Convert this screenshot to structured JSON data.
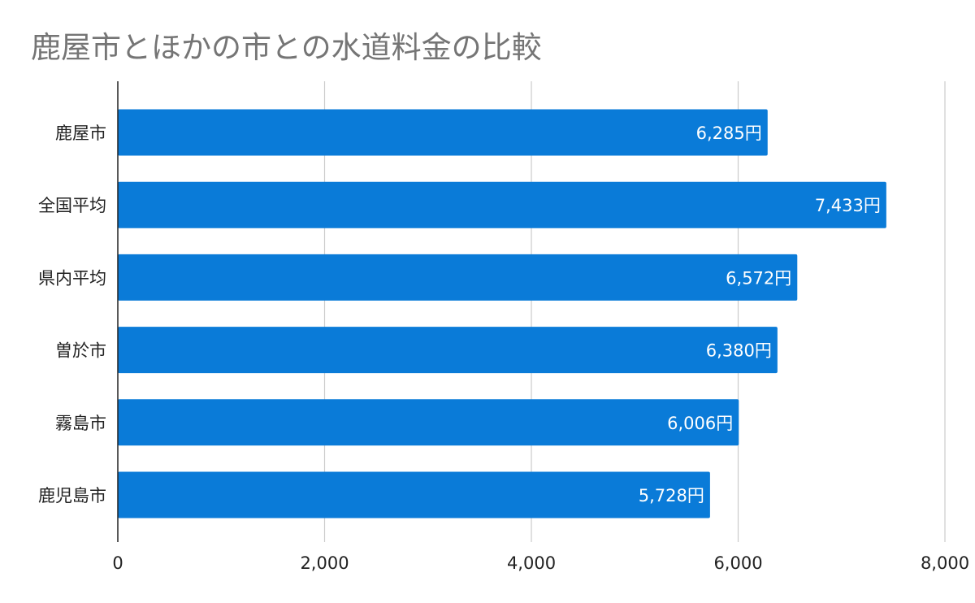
{
  "chart_data": {
    "type": "bar",
    "orientation": "horizontal",
    "title": "鹿屋市とほかの市との水道料金の比較",
    "categories": [
      "鹿屋市",
      "全国平均",
      "県内平均",
      "曽於市",
      "霧島市",
      "鹿児島市"
    ],
    "values": [
      6285,
      7433,
      6572,
      6380,
      6006,
      5728
    ],
    "data_labels": [
      "6,285円",
      "7,433円",
      "6,572円",
      "6,380円",
      "6,006円",
      "5,728円"
    ],
    "xlim": [
      0,
      8000
    ],
    "x_ticks": [
      0,
      2000,
      4000,
      6000,
      8000
    ],
    "x_tick_labels": [
      "0",
      "2,000",
      "4,000",
      "6,000",
      "8,000"
    ],
    "xlabel": "",
    "ylabel": "",
    "grid": true,
    "legend": "none",
    "bar_color": "#0a7bd8",
    "grid_color": "#cccccc",
    "axis_color": "#222222",
    "title_color": "#757575"
  }
}
